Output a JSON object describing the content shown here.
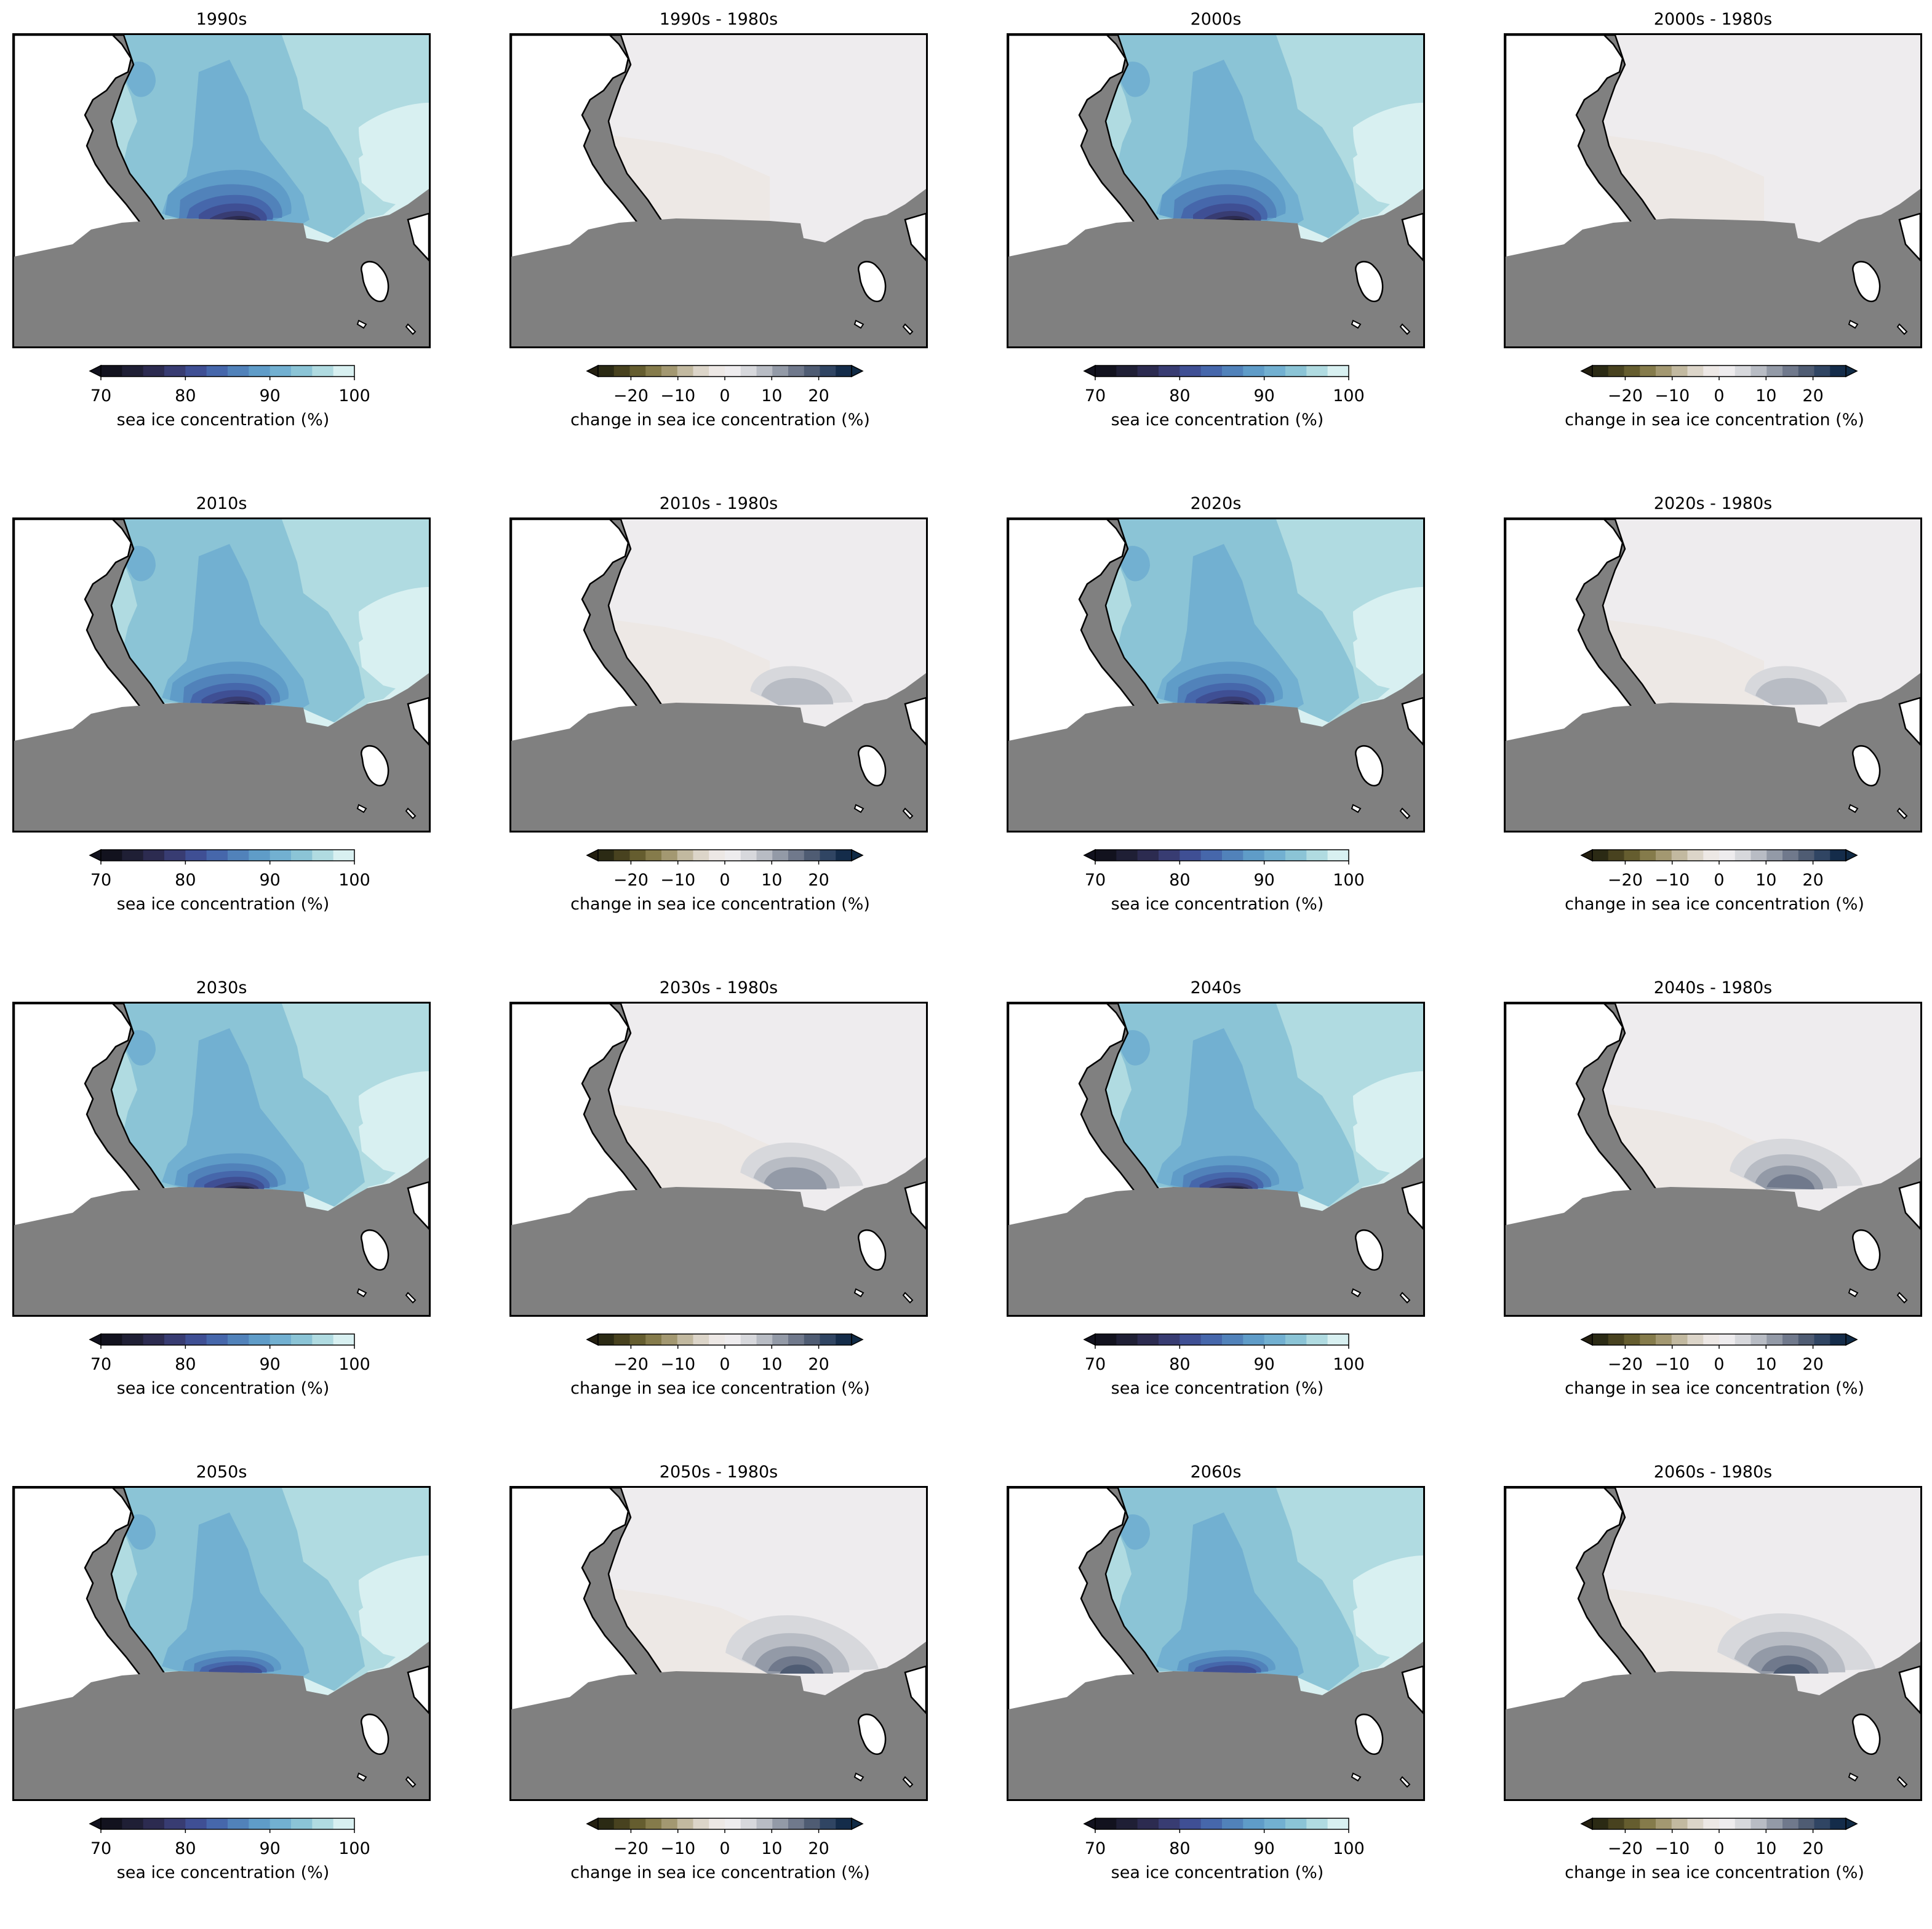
{
  "panels": [
    {
      "title": "1990s",
      "kind": "abs",
      "deficit": 1.0,
      "gain": 0.0
    },
    {
      "title": "1990s - 1980s",
      "kind": "diff",
      "gain": 0.0
    },
    {
      "title": "2000s",
      "kind": "abs",
      "deficit": 1.0,
      "gain": 0.0
    },
    {
      "title": "2000s - 1980s",
      "kind": "diff",
      "gain": 0.0
    },
    {
      "title": "2010s",
      "kind": "abs",
      "deficit": 0.85,
      "gain": 0.3
    },
    {
      "title": "2010s - 1980s",
      "kind": "diff",
      "gain": 0.3
    },
    {
      "title": "2020s",
      "kind": "abs",
      "deficit": 0.85,
      "gain": 0.3
    },
    {
      "title": "2020s - 1980s",
      "kind": "diff",
      "gain": 0.3
    },
    {
      "title": "2030s",
      "kind": "abs",
      "deficit": 0.7,
      "gain": 0.5
    },
    {
      "title": "2030s - 1980s",
      "kind": "diff",
      "gain": 0.5
    },
    {
      "title": "2040s",
      "kind": "abs",
      "deficit": 0.65,
      "gain": 0.6
    },
    {
      "title": "2040s - 1980s",
      "kind": "diff",
      "gain": 0.6
    },
    {
      "title": "2050s",
      "kind": "abs",
      "deficit": 0.45,
      "gain": 0.8
    },
    {
      "title": "2050s - 1980s",
      "kind": "diff",
      "gain": 0.8
    },
    {
      "title": "2060s",
      "kind": "abs",
      "deficit": 0.45,
      "gain": 0.85
    },
    {
      "title": "2060s - 1980s",
      "kind": "diff",
      "gain": 0.85
    }
  ],
  "colorbars": {
    "abs": {
      "label": "sea ice concentration (%)",
      "range": [
        70,
        100
      ],
      "ticks": [
        {
          "value": 70,
          "label": "70"
        },
        {
          "value": 80,
          "label": "80"
        },
        {
          "value": 90,
          "label": "90"
        },
        {
          "value": 100,
          "label": "100"
        }
      ],
      "extend": "min",
      "colors": [
        "#12121e",
        "#1f1f35",
        "#2c2b50",
        "#383c72",
        "#3f4f94",
        "#4667ab",
        "#5182ba",
        "#5f9cc8",
        "#72b0d1",
        "#8bc4d6",
        "#b0dbe1",
        "#d8f0f1"
      ]
    },
    "diff": {
      "label": "change in sea ice concentration (%)",
      "range": [
        -27,
        27
      ],
      "ticks": [
        {
          "value": -20,
          "label": "−20"
        },
        {
          "value": -10,
          "label": "−10"
        },
        {
          "value": 0,
          "label": "0"
        },
        {
          "value": 10,
          "label": "10"
        },
        {
          "value": 20,
          "label": "20"
        }
      ],
      "extend": "both",
      "colors": [
        "#2b2a14",
        "#48421f",
        "#655d2f",
        "#857b4b",
        "#a39871",
        "#c2b9a0",
        "#dcd5c9",
        "#ede8e5",
        "#eeecee",
        "#d7d8dc",
        "#b8bcc4",
        "#939aa7",
        "#70798c",
        "#4f5c73",
        "#304563",
        "#142c4a"
      ],
      "extend_low_color": "#231f10",
      "extend_high_color": "#102a45"
    }
  },
  "map_colors": {
    "land": "#808080",
    "ocean_blank": "#ffffff",
    "coast_line": "#000000",
    "abs_levels": [
      "#d8f0f1",
      "#b0dbe1",
      "#8bc4d6",
      "#72b0d1",
      "#5f9cc8",
      "#5182ba",
      "#4667ab",
      "#3f4f94",
      "#383c72",
      "#2c2b50",
      "#12121e"
    ],
    "diff_base": "#eeecee",
    "diff_west": "#ede8e5",
    "diff_levels": [
      "#d7d8dc",
      "#b8bcc4",
      "#939aa7",
      "#70798c",
      "#4f5c73",
      "#304563"
    ]
  }
}
